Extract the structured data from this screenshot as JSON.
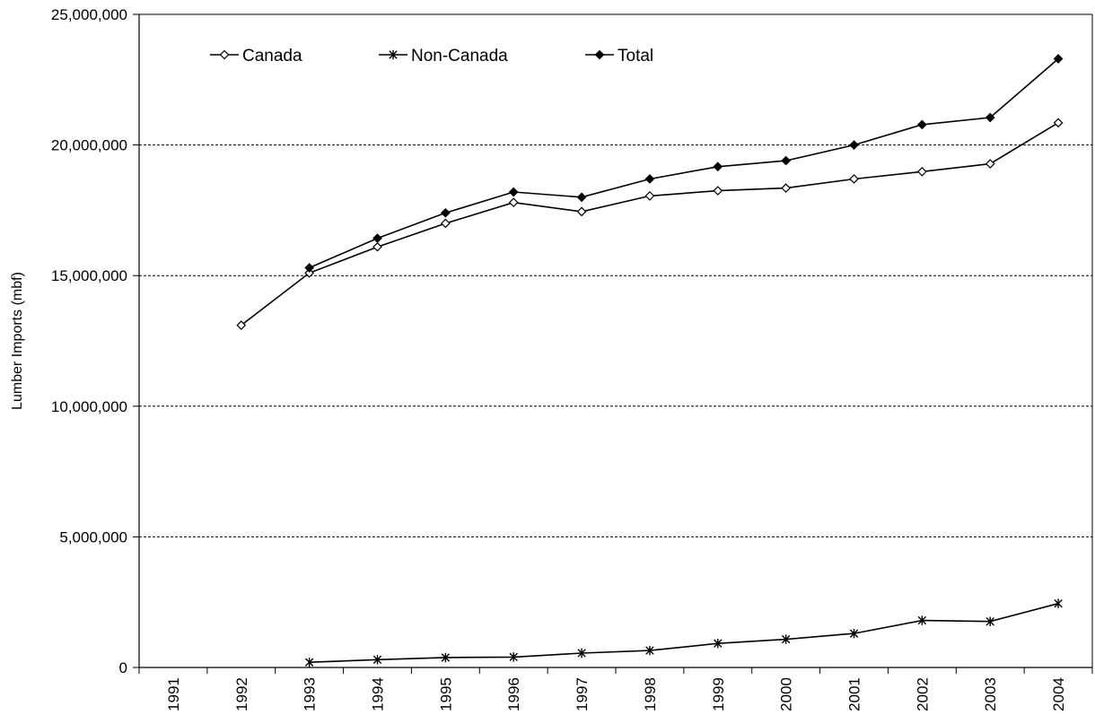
{
  "chart_data": {
    "type": "line",
    "title": "",
    "xlabel": "",
    "ylabel": "Lumber Imports (mbf)",
    "categories": [
      "1991",
      "1992",
      "1993",
      "1994",
      "1995",
      "1996",
      "1997",
      "1998",
      "1999",
      "2000",
      "2001",
      "2002",
      "2003",
      "2004"
    ],
    "ylim": [
      0,
      25000000
    ],
    "y_ticks": [
      0,
      5000000,
      10000000,
      15000000,
      20000000,
      25000000
    ],
    "y_tick_labels": [
      "0",
      "5,000,000",
      "10,000,000",
      "15,000,000",
      "20,000,000",
      "25,000,000"
    ],
    "grid": "horizontal dashed",
    "legend_position": "top-left, inside plot",
    "series": [
      {
        "name": "Canada",
        "marker": "open-diamond",
        "color": "#000000",
        "values": [
          null,
          13100000,
          15100000,
          16100000,
          17000000,
          17800000,
          17450000,
          18050000,
          18250000,
          18350000,
          18700000,
          18980000,
          19280000,
          20850000
        ]
      },
      {
        "name": "Non-Canada",
        "marker": "asterisk",
        "color": "#000000",
        "values": [
          null,
          null,
          200000,
          300000,
          380000,
          400000,
          550000,
          650000,
          920000,
          1080000,
          1300000,
          1800000,
          1760000,
          2450000
        ]
      },
      {
        "name": "Total",
        "marker": "filled-diamond",
        "color": "#000000",
        "values": [
          null,
          null,
          15300000,
          16430000,
          17400000,
          18200000,
          18000000,
          18700000,
          19170000,
          19400000,
          20000000,
          20780000,
          21050000,
          23300000
        ]
      }
    ]
  }
}
